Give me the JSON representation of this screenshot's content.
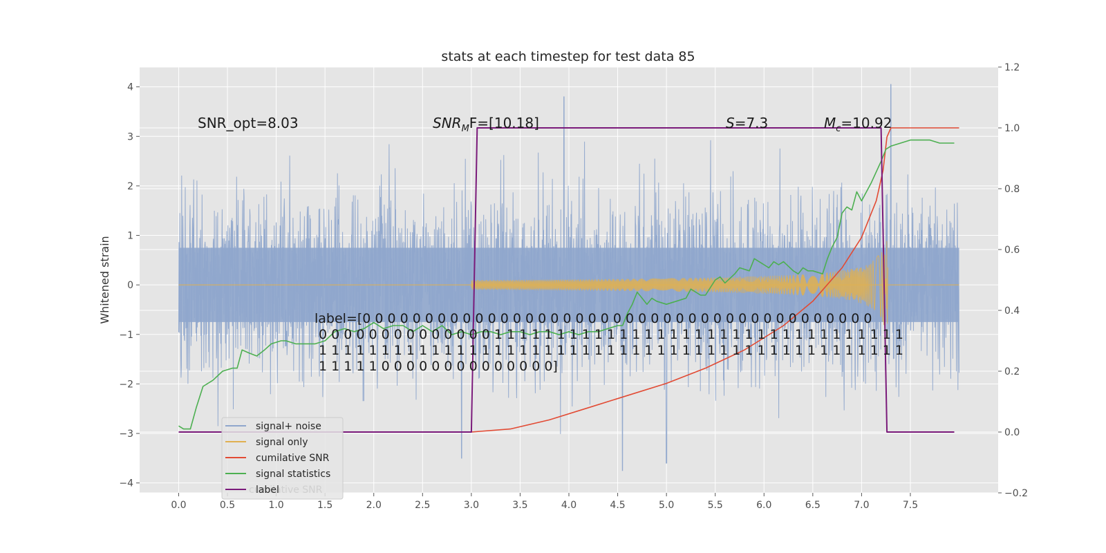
{
  "chart_data": {
    "type": "line",
    "title": "stats at each timestep for test data 85",
    "ylabel": "Whitened strain",
    "xlim": [
      -0.4,
      8.4
    ],
    "ylim": [
      -4.2,
      4.4
    ],
    "y2lim": [
      -0.2,
      1.2
    ],
    "x_ticks": [
      "0.0",
      "0.5",
      "1.0",
      "1.5",
      "2.0",
      "2.5",
      "3.0",
      "3.5",
      "4.0",
      "4.5",
      "5.0",
      "5.5",
      "6.0",
      "6.5",
      "7.0",
      "7.5"
    ],
    "y_ticks": [
      "4",
      "3",
      "2",
      "1",
      "0",
      "−1",
      "−2",
      "−3",
      "−4"
    ],
    "y2_ticks": [
      "1.2",
      "1.0",
      "0.8",
      "0.6",
      "0.4",
      "0.2",
      "0.0",
      "−0.2"
    ],
    "grid": true,
    "legend_position": "lower-left",
    "colors": {
      "signal_noise": "#8fa6cc",
      "signal_only": "#e0b050",
      "cumulative_snr": "#e24a33",
      "signal_statistics": "#4caf50",
      "label": "#7a1a7a",
      "background": "#e5e5e5"
    },
    "annotations": {
      "snr_opt": "SNR_opt=8.03",
      "snr_mf_sym": "SNR",
      "snr_mf_sub": "M",
      "snr_mf_rest": "F=[10.18]",
      "s_sym": "S",
      "s_val": "=7.3",
      "mc_sym": "M",
      "mc_sub": "c",
      "mc_val": "=10.92"
    },
    "label_text": [
      "label=[0 0 0 0 0 0 0 0 0 0 0 0 0 0 0 0 0 0 0 0 0 0 0 0 0 0 0 0 0 0 0 0 0 0 0 0 0 0 0 0 0",
      " 0 0 0 0 0 0 0 0 0 0 0 0 0 0 1 1 1 1 1 1 1 1 1 1 1 1 1 1 1 1 1 1 1 1 1 1 1 1 1 1 1 1 1 1 1 1 1",
      " 1 1 1 1 1 1 1 1 1 1 1 1 1 1 1 1 1 1 1 1 1 1 1 1 1 1 1 1 1 1 1 1 1 1 1 1 1 1 1 1 1 1 1 1 1 1 1",
      " 1 1 1 1 1 0 0 0 0 0 0 0 0 0 0 0 0 0 0]"
    ],
    "legend": [
      "signal+ noise",
      "signal only",
      "cumilative SNR",
      "signal statistics",
      "label"
    ],
    "legend_overlap_text": "cumilative SNR",
    "series": [
      {
        "name": "signal+ noise",
        "axis": "left",
        "x_range": [
          0.0,
          8.0
        ],
        "envelope": [
          -3.3,
          3.4
        ],
        "peaks": [
          [
            3.95,
            3.8
          ],
          [
            7.3,
            4.05
          ],
          [
            4.55,
            -3.75
          ],
          [
            5.0,
            -3.6
          ],
          [
            2.9,
            -3.5
          ]
        ]
      },
      {
        "name": "signal only",
        "axis": "left",
        "chirp_start": 3.0,
        "chirp_end": 7.27,
        "amp_end": 0.9
      },
      {
        "name": "cumilative SNR",
        "axis": "right",
        "x": [
          3.0,
          3.4,
          3.8,
          4.2,
          4.6,
          5.0,
          5.4,
          5.8,
          6.2,
          6.5,
          6.8,
          7.0,
          7.15,
          7.22,
          7.26,
          7.3,
          8.0
        ],
        "y": [
          0.0,
          0.01,
          0.04,
          0.08,
          0.12,
          0.16,
          0.21,
          0.27,
          0.35,
          0.43,
          0.54,
          0.64,
          0.76,
          0.86,
          0.97,
          1.0,
          1.0
        ]
      },
      {
        "name": "signal statistics",
        "axis": "right",
        "x": [
          0.0,
          0.05,
          0.12,
          0.18,
          0.25,
          0.35,
          0.45,
          0.55,
          0.6,
          0.65,
          0.72,
          0.8,
          0.88,
          0.95,
          1.05,
          1.1,
          1.2,
          1.3,
          1.4,
          1.5,
          1.6,
          1.7,
          1.8,
          1.9,
          2.0,
          2.1,
          2.2,
          2.3,
          2.4,
          2.5,
          2.6,
          2.7,
          2.8,
          2.9,
          3.0,
          3.1,
          3.2,
          3.3,
          3.4,
          3.5,
          3.6,
          3.7,
          3.8,
          3.9,
          4.0,
          4.1,
          4.2,
          4.3,
          4.4,
          4.5,
          4.55,
          4.6,
          4.65,
          4.7,
          4.75,
          4.8,
          4.85,
          4.9,
          5.0,
          5.1,
          5.2,
          5.25,
          5.35,
          5.4,
          5.5,
          5.55,
          5.6,
          5.7,
          5.75,
          5.85,
          5.9,
          6.0,
          6.05,
          6.1,
          6.15,
          6.2,
          6.3,
          6.35,
          6.4,
          6.45,
          6.5,
          6.6,
          6.65,
          6.7,
          6.75,
          6.8,
          6.85,
          6.9,
          6.95,
          7.0,
          7.1,
          7.2,
          7.25,
          7.3,
          7.4,
          7.5,
          7.6,
          7.7,
          7.8,
          7.9,
          7.95
        ],
        "y": [
          0.02,
          0.01,
          0.01,
          0.08,
          0.15,
          0.17,
          0.2,
          0.21,
          0.21,
          0.27,
          0.26,
          0.25,
          0.27,
          0.29,
          0.3,
          0.3,
          0.29,
          0.29,
          0.29,
          0.3,
          0.33,
          0.34,
          0.33,
          0.34,
          0.36,
          0.34,
          0.35,
          0.35,
          0.33,
          0.35,
          0.33,
          0.35,
          0.32,
          0.33,
          0.32,
          0.33,
          0.33,
          0.32,
          0.33,
          0.33,
          0.32,
          0.33,
          0.33,
          0.32,
          0.33,
          0.32,
          0.33,
          0.33,
          0.34,
          0.35,
          0.35,
          0.39,
          0.42,
          0.46,
          0.44,
          0.42,
          0.44,
          0.43,
          0.42,
          0.43,
          0.44,
          0.47,
          0.45,
          0.45,
          0.5,
          0.51,
          0.49,
          0.52,
          0.54,
          0.53,
          0.57,
          0.55,
          0.54,
          0.56,
          0.55,
          0.56,
          0.53,
          0.52,
          0.54,
          0.53,
          0.53,
          0.52,
          0.57,
          0.61,
          0.64,
          0.72,
          0.74,
          0.73,
          0.79,
          0.76,
          0.82,
          0.89,
          0.93,
          0.94,
          0.95,
          0.96,
          0.96,
          0.96,
          0.95,
          0.95,
          0.95
        ]
      },
      {
        "name": "label",
        "axis": "right",
        "x": [
          0.0,
          3.0,
          3.06,
          7.2,
          7.26,
          7.95
        ],
        "y": [
          0.0,
          0.0,
          1.0,
          1.0,
          0.0,
          0.0
        ]
      }
    ]
  }
}
